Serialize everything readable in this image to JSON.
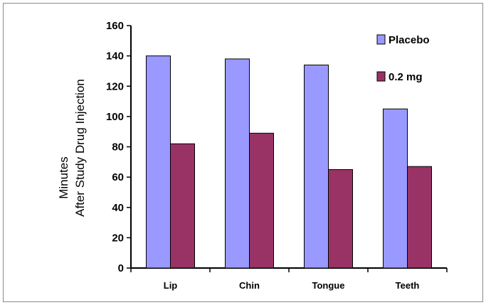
{
  "chart_data": {
    "type": "bar",
    "title": "",
    "xlabel": "",
    "ylabel_lines": [
      "Minutes",
      "After Study Drug Injection"
    ],
    "categories": [
      "Lip",
      "Chin",
      "Tongue",
      "Teeth"
    ],
    "ylim": [
      0,
      160
    ],
    "yticks": [
      0,
      20,
      40,
      60,
      80,
      100,
      120,
      140,
      160
    ],
    "grid": false,
    "legend_position": "top-right",
    "series": [
      {
        "name": "Placebo",
        "values": [
          140,
          138,
          134,
          105
        ],
        "color": "#9999ff"
      },
      {
        "name": "0.2 mg",
        "values": [
          82,
          89,
          65,
          67
        ],
        "color": "#993366"
      }
    ]
  }
}
